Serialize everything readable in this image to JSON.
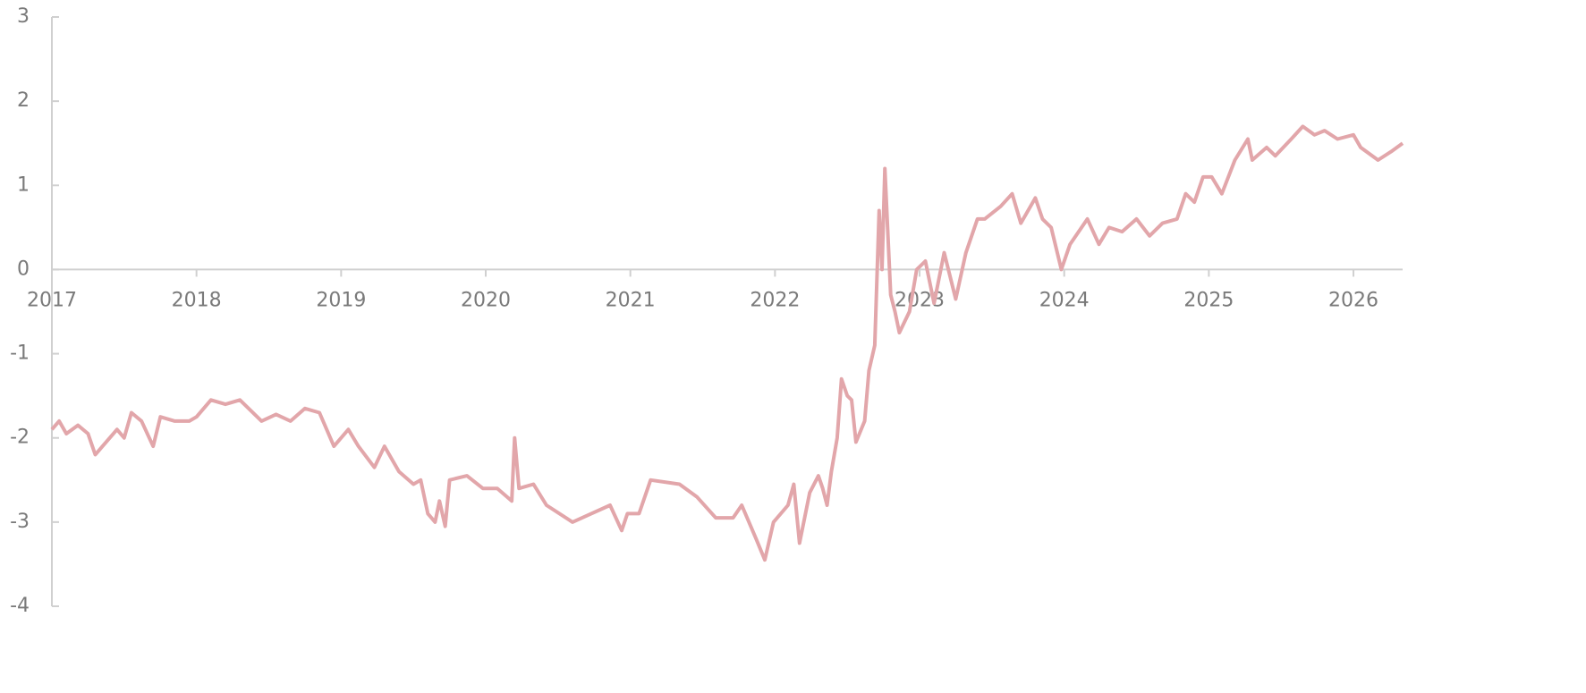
{
  "chart_data": {
    "type": "line",
    "x": [
      2017.0,
      2017.05,
      2017.1,
      2017.18,
      2017.25,
      2017.3,
      2017.35,
      2017.45,
      2017.5,
      2017.55,
      2017.62,
      2017.7,
      2017.75,
      2017.85,
      2017.95,
      2018.0,
      2018.1,
      2018.2,
      2018.3,
      2018.45,
      2018.55,
      2018.65,
      2018.75,
      2018.85,
      2018.95,
      2019.05,
      2019.12,
      2019.23,
      2019.3,
      2019.4,
      2019.5,
      2019.55,
      2019.6,
      2019.65,
      2019.68,
      2019.72,
      2019.75,
      2019.87,
      2019.98,
      2020.08,
      2020.18,
      2020.2,
      2020.23,
      2020.33,
      2020.42,
      2020.6,
      2020.73,
      2020.86,
      2020.94,
      2020.98,
      2021.06,
      2021.14,
      2021.34,
      2021.46,
      2021.59,
      2021.71,
      2021.77,
      2021.87,
      2021.93,
      2021.99,
      2022.09,
      2022.13,
      2022.17,
      2022.24,
      2022.3,
      2022.33,
      2022.36,
      2022.39,
      2022.43,
      2022.46,
      2022.5,
      2022.53,
      2022.56,
      2022.62,
      2022.65,
      2022.69,
      2022.72,
      2022.74,
      2022.76,
      2022.8,
      2022.83,
      2022.86,
      2022.93,
      2022.98,
      2023.04,
      2023.1,
      2023.17,
      2023.25,
      2023.32,
      2023.4,
      2023.45,
      2023.56,
      2023.64,
      2023.7,
      2023.8,
      2023.85,
      2023.91,
      2023.98,
      2024.04,
      2024.16,
      2024.24,
      2024.31,
      2024.4,
      2024.5,
      2024.59,
      2024.68,
      2024.78,
      2024.84,
      2024.9,
      2024.96,
      2025.02,
      2025.09,
      2025.18,
      2025.27,
      2025.3,
      2025.4,
      2025.46,
      2025.57,
      2025.65,
      2025.73,
      2025.8,
      2025.89,
      2026.0,
      2026.05,
      2026.17,
      2026.26,
      2026.34
    ],
    "series": [
      {
        "color": "#e2a6aa",
        "values": [
          -1.9,
          -1.8,
          -1.95,
          -1.85,
          -1.95,
          -2.2,
          -2.1,
          -1.9,
          -2.0,
          -1.7,
          -1.8,
          -2.1,
          -1.75,
          -1.8,
          -1.8,
          -1.75,
          -1.55,
          -1.6,
          -1.55,
          -1.8,
          -1.72,
          -1.8,
          -1.65,
          -1.7,
          -2.1,
          -1.9,
          -2.1,
          -2.35,
          -2.1,
          -2.4,
          -2.55,
          -2.5,
          -2.9,
          -3.0,
          -2.75,
          -3.05,
          -2.5,
          -2.45,
          -2.6,
          -2.6,
          -2.75,
          -2.0,
          -2.6,
          -2.55,
          -2.8,
          -3.0,
          -2.9,
          -2.8,
          -3.1,
          -2.9,
          -2.9,
          -2.5,
          -2.55,
          -2.7,
          -2.95,
          -2.95,
          -2.8,
          -3.2,
          -3.45,
          -3.0,
          -2.8,
          -2.55,
          -3.25,
          -2.65,
          -2.45,
          -2.6,
          -2.8,
          -2.4,
          -2.0,
          -1.3,
          -1.5,
          -1.55,
          -2.05,
          -1.8,
          -1.2,
          -0.9,
          0.7,
          0.0,
          1.2,
          -0.3,
          -0.5,
          -0.75,
          -0.5,
          0.0,
          0.1,
          -0.4,
          0.2,
          -0.35,
          0.2,
          0.6,
          0.6,
          0.75,
          0.9,
          0.55,
          0.85,
          0.6,
          0.5,
          0.0,
          0.3,
          0.6,
          0.3,
          0.5,
          0.45,
          0.6,
          0.4,
          0.55,
          0.6,
          0.9,
          0.8,
          1.1,
          1.1,
          0.9,
          1.3,
          1.55,
          1.3,
          1.45,
          1.35,
          1.55,
          1.7,
          1.6,
          1.65,
          1.55,
          1.6,
          1.45,
          1.3,
          1.4,
          1.5
        ]
      }
    ],
    "xlim": [
      2017,
      2026.34
    ],
    "xticks": [
      2017,
      2018,
      2019,
      2020,
      2021,
      2022,
      2023,
      2024,
      2025,
      2026
    ],
    "ylim": [
      -4,
      3
    ],
    "yticks": [
      -4,
      -3,
      -2,
      -1,
      0,
      1,
      2,
      3
    ]
  }
}
